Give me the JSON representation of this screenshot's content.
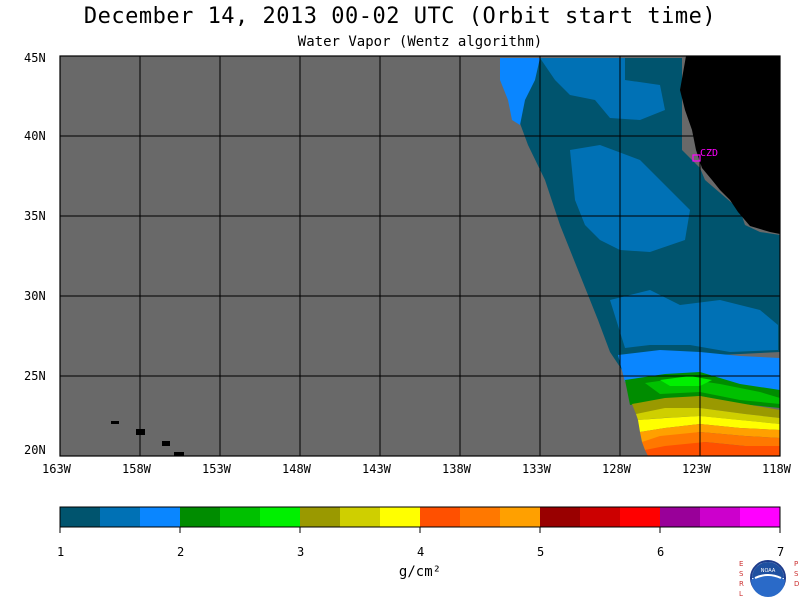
{
  "header": {
    "title": "December 14, 2013  00-02 UTC  (Orbit start time)",
    "subtitle": "Water Vapor (Wentz algorithm)"
  },
  "map": {
    "lat_labels": [
      "45N",
      "40N",
      "35N",
      "30N",
      "25N",
      "20N"
    ],
    "lon_labels": [
      "163W",
      "158W",
      "153W",
      "148W",
      "143W",
      "138W",
      "133W",
      "128W",
      "123W",
      "118W"
    ],
    "station_label": "CZD",
    "colors": {
      "no_data": "#696969",
      "land": "#000000",
      "grid": "#000000",
      "station": "#ff00ff"
    }
  },
  "legend": {
    "units": "g/cm²",
    "tick_labels": [
      "1",
      "2",
      "3",
      "4",
      "5",
      "6",
      "7"
    ],
    "colors": [
      "#00546e",
      "#0071b5",
      "#0a86ff",
      "#008c00",
      "#00c000",
      "#00f000",
      "#9a9900",
      "#cfcf00",
      "#ffff00",
      "#ff5000",
      "#ff7800",
      "#ffa000",
      "#990000",
      "#cc0000",
      "#ff0000",
      "#990099",
      "#cc00cc",
      "#ff00ff"
    ]
  },
  "logo": {
    "left_text": "ESRL",
    "right_text": "PSD",
    "center_text": "NOAA"
  }
}
